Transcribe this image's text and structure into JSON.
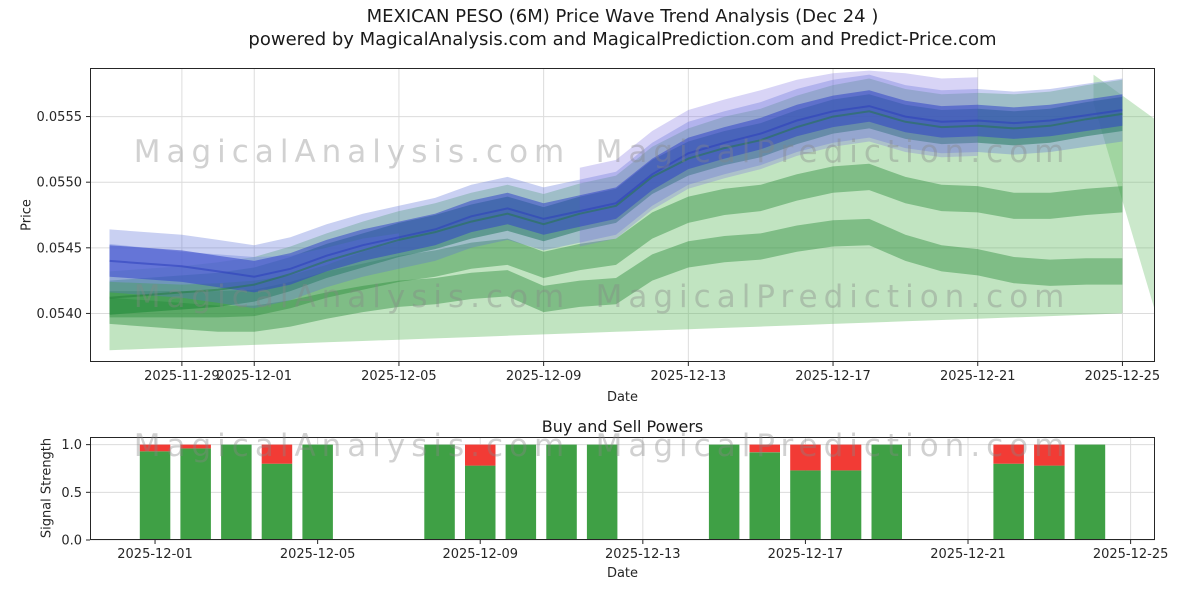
{
  "header": {
    "title_line1": "MEXICAN PESO (6M) Price Wave Trend Analysis (Dec 24 )",
    "title_line2": "powered by MagicalAnalysis.com and MagicalPrediction.com and Predict-Price.com"
  },
  "watermarks": {
    "left": "MagicalAnalysis.com",
    "right": "MagicalPrediction.com"
  },
  "chart_data": [
    {
      "type": "area",
      "title": "",
      "xlabel": "Date",
      "ylabel": "Price",
      "x_base_date": "2025-11-27",
      "xlim": [
        -0.54,
        28.9
      ],
      "ylim": [
        0.05363,
        0.05587
      ],
      "yticks": [
        0.054,
        0.0545,
        0.055,
        0.0555
      ],
      "ytick_labels": [
        "0.0540",
        "0.0545",
        "0.0550",
        "0.0555"
      ],
      "xticks": [
        {
          "day": 2,
          "label": "2025-11-29"
        },
        {
          "day": 4,
          "label": "2025-12-01"
        },
        {
          "day": 8,
          "label": "2025-12-05"
        },
        {
          "day": 12,
          "label": "2025-12-09"
        },
        {
          "day": 16,
          "label": "2025-12-13"
        },
        {
          "day": 20,
          "label": "2025-12-17"
        },
        {
          "day": 24,
          "label": "2025-12-21"
        },
        {
          "day": 28,
          "label": "2025-12-25"
        }
      ],
      "x": [
        0,
        1,
        2,
        3,
        4,
        5,
        6,
        7,
        8,
        9,
        10,
        11,
        12,
        13,
        14,
        15,
        16,
        17,
        18,
        19,
        20,
        21,
        22,
        23,
        24,
        25,
        26,
        27,
        28
      ],
      "bands": [
        {
          "name": "green-outer-band",
          "color": "#5db75d",
          "opacity": 0.38,
          "lower": [
            0.05372,
            0.05373,
            0.05374,
            0.05375,
            0.05376,
            0.05377,
            0.05378,
            0.05379,
            0.0538,
            0.05381,
            0.05382,
            0.05383,
            0.05384,
            0.05385,
            0.05386,
            0.05387,
            0.05388,
            0.05389,
            0.0539,
            0.05391,
            0.05392,
            0.05393,
            0.05394,
            0.05395,
            0.05396,
            0.05397,
            0.05398,
            0.05399,
            0.054
          ],
          "upper": [
            0.05432,
            0.05434,
            0.05436,
            0.05439,
            0.05443,
            0.05451,
            0.05461,
            0.0547,
            0.05478,
            0.05484,
            0.05492,
            0.05498,
            0.05491,
            0.05499,
            0.05505,
            0.05527,
            0.05541,
            0.0555,
            0.05556,
            0.05566,
            0.05574,
            0.05579,
            0.05571,
            0.05567,
            0.05568,
            0.05567,
            0.05569,
            0.05574,
            0.05578
          ]
        },
        {
          "name": "green-closing-wedge",
          "color": "#5db75d",
          "opacity": 0.32,
          "x": [
            27.2,
            28.9
          ],
          "lower": [
            0.0556,
            0.05402
          ],
          "upper": [
            0.05582,
            0.05548
          ]
        },
        {
          "name": "green-quantile-upper-band",
          "color": "#2f8f3f",
          "opacity": 0.45,
          "lower": [
            0.05397,
            0.05397,
            0.05397,
            0.05397,
            0.05398,
            0.05404,
            0.05412,
            0.05418,
            0.05424,
            0.05428,
            0.05434,
            0.05437,
            0.05427,
            0.05433,
            0.05437,
            0.05457,
            0.05469,
            0.05475,
            0.05478,
            0.05486,
            0.05492,
            0.05494,
            0.05484,
            0.05478,
            0.05477,
            0.05472,
            0.05472,
            0.05475,
            0.05477
          ],
          "upper": [
            0.05417,
            0.05417,
            0.05417,
            0.05417,
            0.05418,
            0.05424,
            0.05432,
            0.05438,
            0.05444,
            0.05448,
            0.05454,
            0.05457,
            0.05447,
            0.05453,
            0.05457,
            0.05477,
            0.05489,
            0.05495,
            0.05498,
            0.05506,
            0.05512,
            0.05514,
            0.05504,
            0.05498,
            0.05497,
            0.05492,
            0.05492,
            0.05495,
            0.05497
          ]
        },
        {
          "name": "green-quantile-lower-band",
          "color": "#2f8f3f",
          "opacity": 0.45,
          "lower": [
            0.05392,
            0.0539,
            0.05388,
            0.05386,
            0.05386,
            0.0539,
            0.05396,
            0.05401,
            0.05405,
            0.05407,
            0.05411,
            0.05413,
            0.05401,
            0.05405,
            0.05407,
            0.05425,
            0.05435,
            0.05439,
            0.05441,
            0.05447,
            0.05451,
            0.05452,
            0.0544,
            0.05432,
            0.05429,
            0.05423,
            0.05421,
            0.05422,
            0.05422
          ],
          "upper": [
            0.05412,
            0.0541,
            0.05408,
            0.05406,
            0.05406,
            0.0541,
            0.05416,
            0.05421,
            0.05425,
            0.05427,
            0.05431,
            0.05433,
            0.05421,
            0.05425,
            0.05427,
            0.05445,
            0.05455,
            0.05459,
            0.05461,
            0.05467,
            0.05471,
            0.05472,
            0.0546,
            0.05452,
            0.05449,
            0.05443,
            0.05441,
            0.05442,
            0.05442
          ]
        },
        {
          "name": "green-inner-band",
          "color": "#1f8a38",
          "opacity": 0.6,
          "lower": [
            0.05399,
            0.05401,
            0.05403,
            0.05405,
            0.05409,
            0.05417,
            0.05427,
            0.05435,
            0.05443,
            0.05449,
            0.05457,
            0.05463,
            0.05455,
            0.05463,
            0.05469,
            0.05491,
            0.05505,
            0.05513,
            0.05519,
            0.05529,
            0.05537,
            0.05541,
            0.05533,
            0.05529,
            0.0553,
            0.05528,
            0.0553,
            0.05535,
            0.05539
          ],
          "upper": [
            0.05425,
            0.05427,
            0.05429,
            0.05431,
            0.05435,
            0.05443,
            0.05453,
            0.05461,
            0.05469,
            0.05475,
            0.05483,
            0.05489,
            0.05481,
            0.05489,
            0.05495,
            0.05517,
            0.05531,
            0.05539,
            0.05545,
            0.05555,
            0.05563,
            0.05567,
            0.05559,
            0.05555,
            0.05556,
            0.05554,
            0.05556,
            0.05561,
            0.05565
          ]
        },
        {
          "name": "blue-left-fan",
          "color": "#93a5e6",
          "opacity": 0.5,
          "x": [
            0,
            1,
            2,
            3,
            4,
            5,
            6,
            7,
            8
          ],
          "lower": [
            0.05424,
            0.05423,
            0.05422,
            0.05423,
            0.05425,
            0.05429,
            0.05437,
            0.05447,
            0.05455
          ],
          "upper": [
            0.05453,
            0.0545,
            0.05447,
            0.05445,
            0.05443,
            0.05444,
            0.0545,
            0.05457,
            0.05461
          ]
        },
        {
          "name": "blue-outer-band",
          "color": "#5a6fd8",
          "opacity": 0.33,
          "lower": [
            0.05416,
            0.05414,
            0.05412,
            0.05408,
            0.05404,
            0.0541,
            0.0542,
            0.05428,
            0.05434,
            0.0544,
            0.0545,
            0.05456,
            0.05448,
            0.05454,
            0.0546,
            0.05482,
            0.05498,
            0.05506,
            0.05513,
            0.05523,
            0.0553,
            0.05534,
            0.05526,
            0.05522,
            0.05523,
            0.05521,
            0.05523,
            0.05527,
            0.05531
          ],
          "upper": [
            0.05464,
            0.05462,
            0.0546,
            0.05456,
            0.05452,
            0.05458,
            0.05468,
            0.05476,
            0.05482,
            0.05488,
            0.05498,
            0.05504,
            0.05496,
            0.05502,
            0.05508,
            0.0553,
            0.05546,
            0.05554,
            0.05561,
            0.05571,
            0.05578,
            0.05582,
            0.05574,
            0.0557,
            0.05571,
            0.05569,
            0.05571,
            0.05575,
            0.05579
          ]
        },
        {
          "name": "violet-band",
          "color": "#7d6fe0",
          "opacity": 0.3,
          "x": [
            13,
            14,
            15,
            16,
            17,
            18,
            19,
            20,
            21,
            22,
            23,
            24
          ],
          "lower": [
            0.05451,
            0.05457,
            0.05479,
            0.05495,
            0.05503,
            0.0551,
            0.0552,
            0.05527,
            0.05531,
            0.05523,
            0.05519,
            0.0552
          ],
          "upper": [
            0.05511,
            0.05517,
            0.05539,
            0.05555,
            0.05563,
            0.0557,
            0.05578,
            0.05583,
            0.05585,
            0.05583,
            0.05579,
            0.0558
          ]
        },
        {
          "name": "blue-inner-band",
          "color": "#3243c8",
          "opacity": 0.55,
          "lower": [
            0.05428,
            0.05426,
            0.05424,
            0.0542,
            0.05416,
            0.05422,
            0.05432,
            0.0544,
            0.05446,
            0.05452,
            0.05462,
            0.05468,
            0.0546,
            0.05466,
            0.05472,
            0.05494,
            0.0551,
            0.05518,
            0.05525,
            0.05535,
            0.05542,
            0.05546,
            0.05538,
            0.05534,
            0.05535,
            0.05533,
            0.05535,
            0.05539,
            0.05543
          ],
          "upper": [
            0.05452,
            0.0545,
            0.05448,
            0.05444,
            0.0544,
            0.05446,
            0.05456,
            0.05464,
            0.0547,
            0.05476,
            0.05486,
            0.05492,
            0.05484,
            0.0549,
            0.05496,
            0.05518,
            0.05534,
            0.05542,
            0.05549,
            0.05559,
            0.05566,
            0.0557,
            0.05562,
            0.05558,
            0.05559,
            0.05557,
            0.05559,
            0.05563,
            0.05567
          ]
        }
      ],
      "lines": [
        {
          "name": "green-median-line",
          "color": "#1c7a33",
          "opacity": 0.45,
          "width": 2,
          "y": [
            0.05412,
            0.05414,
            0.05416,
            0.05418,
            0.05422,
            0.0543,
            0.0544,
            0.05448,
            0.05456,
            0.05462,
            0.0547,
            0.05476,
            0.05468,
            0.05476,
            0.05482,
            0.05504,
            0.05518,
            0.05526,
            0.05532,
            0.05542,
            0.0555,
            0.05554,
            0.05546,
            0.05542,
            0.05543,
            0.05541,
            0.05543,
            0.05548,
            0.05552
          ]
        },
        {
          "name": "blue-median-line",
          "color": "#2c3ebc",
          "opacity": 0.55,
          "width": 2,
          "y": [
            0.0544,
            0.05438,
            0.05436,
            0.05432,
            0.05428,
            0.05434,
            0.05444,
            0.05452,
            0.05458,
            0.05464,
            0.05474,
            0.0548,
            0.05472,
            0.05478,
            0.05484,
            0.05506,
            0.05522,
            0.0553,
            0.05537,
            0.05547,
            0.05554,
            0.05558,
            0.0555,
            0.05546,
            0.05547,
            0.05545,
            0.05547,
            0.05551,
            0.05555
          ]
        }
      ]
    },
    {
      "type": "bar",
      "title": "Buy and Sell Powers",
      "xlabel": "Date",
      "ylabel": "Signal Strength",
      "x_base_date": "2025-12-01",
      "xlim": [
        -1.6,
        24.6
      ],
      "ylim": [
        0,
        1.08
      ],
      "yticks": [
        0.0,
        0.5,
        1.0
      ],
      "ytick_labels": [
        "0.0",
        "0.5",
        "1.0"
      ],
      "xticks": [
        {
          "day": 0,
          "label": "2025-12-01"
        },
        {
          "day": 4,
          "label": "2025-12-05"
        },
        {
          "day": 8,
          "label": "2025-12-09"
        },
        {
          "day": 12,
          "label": "2025-12-13"
        },
        {
          "day": 16,
          "label": "2025-12-17"
        },
        {
          "day": 20,
          "label": "2025-12-21"
        },
        {
          "day": 24,
          "label": "2025-12-25"
        }
      ],
      "bar_width": 0.75,
      "colors": {
        "buy": "#3fa045",
        "sell": "#f23b35"
      },
      "bars": [
        {
          "date": "2025-12-01",
          "day": 0,
          "buy": 0.93,
          "sell": 0.07
        },
        {
          "date": "2025-12-02",
          "day": 1,
          "buy": 0.96,
          "sell": 0.04
        },
        {
          "date": "2025-12-03",
          "day": 2,
          "buy": 1.0,
          "sell": 0
        },
        {
          "date": "2025-12-04",
          "day": 3,
          "buy": 0.8,
          "sell": 0.2
        },
        {
          "date": "2025-12-05",
          "day": 4,
          "buy": 1.0,
          "sell": 0
        },
        {
          "date": "2025-12-08",
          "day": 7,
          "buy": 1.0,
          "sell": 0
        },
        {
          "date": "2025-12-09",
          "day": 8,
          "buy": 0.78,
          "sell": 0.22
        },
        {
          "date": "2025-12-10",
          "day": 9,
          "buy": 1.0,
          "sell": 0
        },
        {
          "date": "2025-12-11",
          "day": 10,
          "buy": 1.0,
          "sell": 0
        },
        {
          "date": "2025-12-12",
          "day": 11,
          "buy": 1.0,
          "sell": 0
        },
        {
          "date": "2025-12-15",
          "day": 14,
          "buy": 1.0,
          "sell": 0
        },
        {
          "date": "2025-12-16",
          "day": 15,
          "buy": 0.92,
          "sell": 0.08
        },
        {
          "date": "2025-12-17",
          "day": 16,
          "buy": 0.73,
          "sell": 0.27
        },
        {
          "date": "2025-12-18",
          "day": 17,
          "buy": 0.73,
          "sell": 0.27
        },
        {
          "date": "2025-12-19",
          "day": 18,
          "buy": 1.0,
          "sell": 0
        },
        {
          "date": "2025-12-22",
          "day": 21,
          "buy": 0.8,
          "sell": 0.2
        },
        {
          "date": "2025-12-23",
          "day": 22,
          "buy": 0.78,
          "sell": 0.22
        },
        {
          "date": "2025-12-24",
          "day": 23,
          "buy": 1.0,
          "sell": 0
        }
      ]
    }
  ]
}
